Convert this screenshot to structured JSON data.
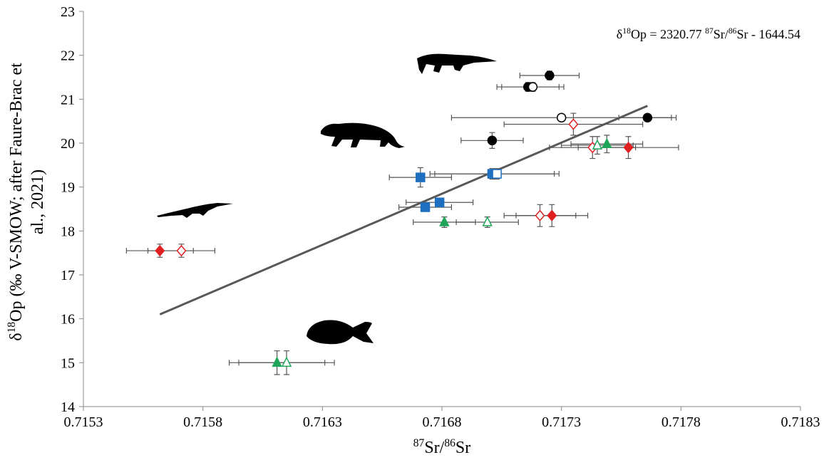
{
  "chart_data": {
    "type": "scatter",
    "equation": [
      {
        "text": "δ"
      },
      {
        "text": "18",
        "sup": true
      },
      {
        "text": "Op = 2320.77 "
      },
      {
        "text": "87",
        "sup": true
      },
      {
        "text": "Sr/"
      },
      {
        "text": "86",
        "sup": true
      },
      {
        "text": "Sr - 1644.54"
      }
    ],
    "xlabel": [
      {
        "text": "87",
        "sup": true
      },
      {
        "text": "Sr/"
      },
      {
        "text": "86",
        "sup": true
      },
      {
        "text": "Sr"
      }
    ],
    "ylabel": [
      [
        {
          "text": "δ"
        },
        {
          "text": "18",
          "sup": true
        },
        {
          "text": "Op (‰ V-SMOW; after Faure-Brac et"
        }
      ],
      [
        {
          "text": "al., 2021)"
        }
      ]
    ],
    "xlim": [
      0.7153,
      0.7183
    ],
    "xticks": [
      0.7153,
      0.7158,
      0.7163,
      0.7168,
      0.7173,
      0.7178,
      0.7183
    ],
    "ylim": [
      14,
      23
    ],
    "yticks": [
      14,
      15,
      16,
      17,
      18,
      19,
      20,
      21,
      22,
      23
    ],
    "trendline": {
      "x": [
        0.71562,
        0.71766
      ],
      "y": [
        16.1,
        20.85
      ],
      "color": "#595959"
    },
    "series": [
      {
        "marker": "circle",
        "filled": true,
        "color": "#000000",
        "x": [
          0.71725,
          0.71716,
          0.71766,
          0.71701
        ],
        "y": [
          21.54,
          21.28,
          20.58,
          20.06
        ],
        "xerr": [
          0.000124,
          0.00013,
          0.00012,
          0.00013
        ],
        "yerr": [
          0.1,
          0.1,
          0.08,
          0.18
        ]
      },
      {
        "marker": "circle",
        "filled": false,
        "color": "#000000",
        "x": [
          0.71718,
          0.7173
        ],
        "y": [
          21.28,
          20.58
        ],
        "xerr": [
          0.00013,
          0.00046
        ],
        "yerr": [
          0.1,
          0.08
        ]
      },
      {
        "marker": "diamond",
        "filled": false,
        "color": "#e02020",
        "x": [
          0.71735,
          0.71743,
          0.71721,
          0.71571
        ],
        "y": [
          20.43,
          19.9,
          18.35,
          17.55
        ],
        "xerr": [
          0.00029,
          0.00018,
          0.00015,
          0.00014
        ],
        "yerr": [
          0.25,
          0.25,
          0.25,
          0.15
        ]
      },
      {
        "marker": "diamond",
        "filled": true,
        "color": "#e02020",
        "x": [
          0.71758,
          0.71726,
          0.71562
        ],
        "y": [
          19.9,
          18.35,
          17.55
        ],
        "xerr": [
          0.00021,
          0.00015,
          0.00014
        ],
        "yerr": [
          0.25,
          0.25,
          0.15
        ]
      },
      {
        "marker": "triangle",
        "filled": true,
        "color": "#1fa55a",
        "x": [
          0.71749,
          0.71681,
          0.71611
        ],
        "y": [
          19.98,
          18.2,
          15.0
        ],
        "xerr": [
          0.00015,
          0.00013,
          0.0002
        ],
        "yerr": [
          0.2,
          0.12,
          0.27
        ]
      },
      {
        "marker": "triangle",
        "filled": false,
        "color": "#1fa55a",
        "x": [
          0.71745,
          0.71699,
          0.71615
        ],
        "y": [
          19.95,
          18.2,
          15.0
        ],
        "xerr": [
          0.00015,
          0.00013,
          0.0002
        ],
        "yerr": [
          0.2,
          0.12,
          0.27
        ]
      },
      {
        "marker": "square",
        "filled": true,
        "color": "#1f6fc0",
        "x": [
          0.71671,
          0.71701,
          0.71679,
          0.71673
        ],
        "y": [
          19.22,
          19.3,
          18.65,
          18.54
        ],
        "xerr": [
          0.00013,
          0.00026,
          0.00014,
          0.00011
        ],
        "yerr": [
          0.22,
          0.12,
          0.1,
          0.05
        ]
      },
      {
        "marker": "square",
        "filled": false,
        "color": "#1f6fc0",
        "x": [
          0.71703
        ],
        "y": [
          19.3
        ],
        "xerr": [
          0.00026
        ],
        "yerr": [
          0.12
        ]
      }
    ]
  }
}
